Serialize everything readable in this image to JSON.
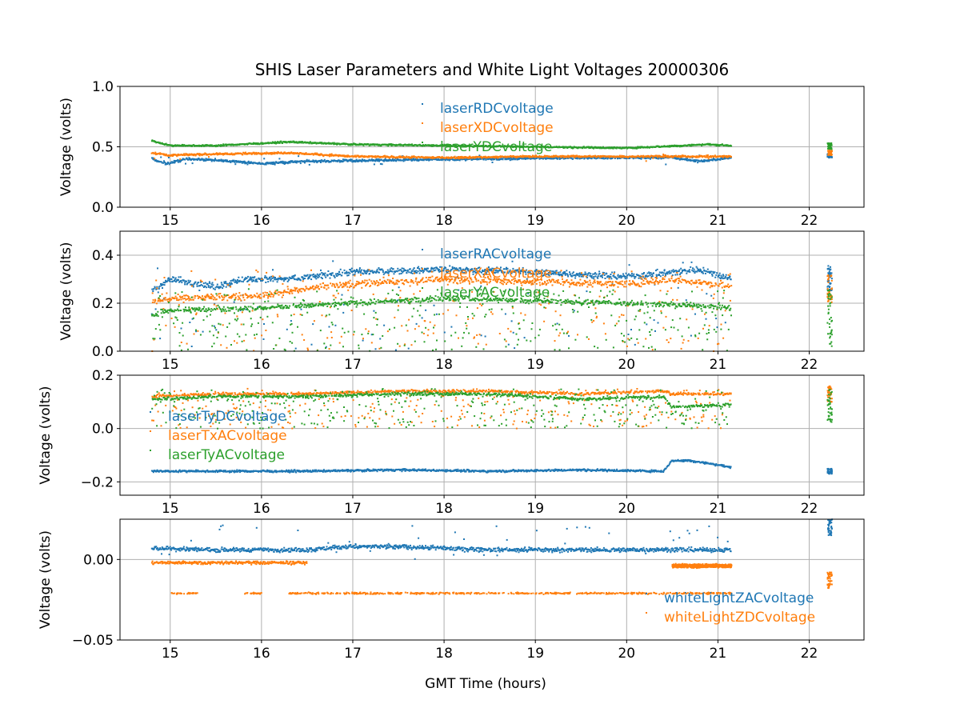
{
  "title": "SHIS Laser Parameters and White Light Voltages 20000306",
  "colors": {
    "c0": "#1f77b4",
    "c1": "#ff7f0e",
    "c2": "#2ca02c"
  },
  "chart_data": [
    {
      "type": "scatter",
      "xlim": [
        14.45,
        22.6
      ],
      "ylim": [
        0.0,
        1.0
      ],
      "xticks": [
        15,
        16,
        17,
        18,
        19,
        20,
        21,
        22
      ],
      "xtick_labels": [
        "15",
        "16",
        "17",
        "18",
        "19",
        "20",
        "21",
        "22"
      ],
      "yticks": [
        0.0,
        0.5,
        1.0
      ],
      "ytick_labels": [
        "0.0",
        "0.5",
        "1.0"
      ],
      "ylabel": "Voltage (volts)",
      "xlabel": "",
      "legend_placement": "top-center",
      "series": [
        {
          "name": "laserRDCvoltage",
          "color": "#1f77b4",
          "base": [
            [
              14.8,
              0.4
            ],
            [
              14.95,
              0.36
            ],
            [
              15.2,
              0.4
            ],
            [
              15.7,
              0.38
            ],
            [
              16.0,
              0.36
            ],
            [
              16.5,
              0.38
            ],
            [
              17.5,
              0.39
            ],
            [
              18.5,
              0.4
            ],
            [
              19.5,
              0.41
            ],
            [
              20.5,
              0.41
            ],
            [
              20.8,
              0.38
            ],
            [
              21.15,
              0.41
            ]
          ],
          "noise": 0.015,
          "outlier_rate": 0.02,
          "outlier_range": [
            0.35,
            0.45
          ],
          "late": [
            22.2,
            22.25,
            0.41,
            0.44
          ]
        },
        {
          "name": "laserXDCvoltage",
          "color": "#ff7f0e",
          "base": [
            [
              14.8,
              0.45
            ],
            [
              15.0,
              0.43
            ],
            [
              15.5,
              0.44
            ],
            [
              16.3,
              0.45
            ],
            [
              17.0,
              0.42
            ],
            [
              18.0,
              0.41
            ],
            [
              19.0,
              0.42
            ],
            [
              20.0,
              0.42
            ],
            [
              21.15,
              0.42
            ]
          ],
          "noise": 0.012,
          "outlier_rate": 0.01,
          "outlier_range": [
            0.38,
            0.45
          ],
          "late": [
            22.2,
            22.25,
            0.43,
            0.47
          ]
        },
        {
          "name": "laserYDCvoltage",
          "color": "#2ca02c",
          "base": [
            [
              14.8,
              0.55
            ],
            [
              15.0,
              0.51
            ],
            [
              15.5,
              0.51
            ],
            [
              16.3,
              0.54
            ],
            [
              17.0,
              0.52
            ],
            [
              18.0,
              0.51
            ],
            [
              19.0,
              0.5
            ],
            [
              20.0,
              0.49
            ],
            [
              20.9,
              0.52
            ],
            [
              21.15,
              0.51
            ]
          ],
          "noise": 0.01,
          "outlier_rate": 0.0,
          "outlier_range": [
            0.48,
            0.54
          ],
          "late": [
            22.2,
            22.25,
            0.48,
            0.53
          ]
        }
      ]
    },
    {
      "type": "scatter",
      "xlim": [
        14.45,
        22.6
      ],
      "ylim": [
        0.0,
        0.5
      ],
      "xticks": [
        15,
        16,
        17,
        18,
        19,
        20,
        21,
        22
      ],
      "xtick_labels": [
        "15",
        "16",
        "17",
        "18",
        "19",
        "20",
        "21",
        "22"
      ],
      "yticks": [
        0.0,
        0.2,
        0.4
      ],
      "ytick_labels": [
        "0.0",
        "0.2",
        "0.4"
      ],
      "ylabel": "Voltage (volts)",
      "xlabel": "",
      "legend_placement": "top-center",
      "series": [
        {
          "name": "laserRACvoltage",
          "color": "#1f77b4",
          "base": [
            [
              14.8,
              0.25
            ],
            [
              15.0,
              0.3
            ],
            [
              15.5,
              0.27
            ],
            [
              15.8,
              0.3
            ],
            [
              16.3,
              0.3
            ],
            [
              17.0,
              0.33
            ],
            [
              18.0,
              0.34
            ],
            [
              19.0,
              0.33
            ],
            [
              20.0,
              0.31
            ],
            [
              20.8,
              0.34
            ],
            [
              21.15,
              0.3
            ]
          ],
          "noise": 0.02,
          "outlier_rate": 0.12,
          "outlier_range": [
            0.0,
            0.38
          ],
          "late": [
            22.2,
            22.25,
            0.25,
            0.36
          ]
        },
        {
          "name": "laserXACvoltage",
          "color": "#ff7f0e",
          "base": [
            [
              14.8,
              0.2
            ],
            [
              15.0,
              0.22
            ],
            [
              16.0,
              0.23
            ],
            [
              16.5,
              0.26
            ],
            [
              17.0,
              0.28
            ],
            [
              18.0,
              0.3
            ],
            [
              19.0,
              0.29
            ],
            [
              20.0,
              0.28
            ],
            [
              20.5,
              0.3
            ],
            [
              21.15,
              0.27
            ]
          ],
          "noise": 0.02,
          "outlier_rate": 0.25,
          "outlier_range": [
            0.0,
            0.34
          ],
          "late": [
            22.2,
            22.25,
            0.2,
            0.32
          ]
        },
        {
          "name": "laserYACvoltage",
          "color": "#2ca02c",
          "base": [
            [
              14.8,
              0.15
            ],
            [
              15.0,
              0.17
            ],
            [
              16.0,
              0.18
            ],
            [
              16.5,
              0.19
            ],
            [
              17.0,
              0.2
            ],
            [
              18.0,
              0.22
            ],
            [
              19.0,
              0.21
            ],
            [
              20.0,
              0.2
            ],
            [
              20.8,
              0.19
            ],
            [
              21.15,
              0.18
            ]
          ],
          "noise": 0.015,
          "outlier_rate": 0.3,
          "outlier_range": [
            0.0,
            0.26
          ],
          "late": [
            22.2,
            22.25,
            0.02,
            0.26
          ]
        }
      ]
    },
    {
      "type": "scatter",
      "xlim": [
        14.45,
        22.6
      ],
      "ylim": [
        -0.25,
        0.2
      ],
      "xticks": [
        15,
        16,
        17,
        18,
        19,
        20,
        21,
        22
      ],
      "xtick_labels": [
        "15",
        "16",
        "17",
        "18",
        "19",
        "20",
        "21",
        "22"
      ],
      "yticks": [
        -0.2,
        0.0,
        0.2
      ],
      "ytick_labels": [
        "−0.2",
        "0.0",
        "0.2"
      ],
      "ylabel": "Voltage (volts)",
      "xlabel": "",
      "legend_placement": "center-left",
      "series": [
        {
          "name": "laserTyDCvoltage",
          "color": "#1f77b4",
          "base": [
            [
              14.8,
              -0.16
            ],
            [
              15.5,
              -0.16
            ],
            [
              16.5,
              -0.16
            ],
            [
              17.5,
              -0.155
            ],
            [
              18.5,
              -0.16
            ],
            [
              19.5,
              -0.155
            ],
            [
              20.4,
              -0.16
            ],
            [
              20.5,
              -0.12
            ],
            [
              20.7,
              -0.12
            ],
            [
              21.15,
              -0.145
            ]
          ],
          "noise": 0.006,
          "outlier_rate": 0.0,
          "outlier_range": [
            -0.17,
            -0.14
          ],
          "late": [
            22.2,
            22.25,
            -0.17,
            -0.15
          ]
        },
        {
          "name": "laserTxACvoltage",
          "color": "#ff7f0e",
          "base": [
            [
              14.8,
              0.12
            ],
            [
              15.5,
              0.13
            ],
            [
              16.5,
              0.13
            ],
            [
              17.5,
              0.14
            ],
            [
              18.5,
              0.14
            ],
            [
              19.5,
              0.13
            ],
            [
              20.4,
              0.14
            ],
            [
              20.5,
              0.13
            ],
            [
              21.15,
              0.13
            ]
          ],
          "noise": 0.008,
          "outlier_rate": 0.25,
          "outlier_range": [
            0.0,
            0.15
          ],
          "late": [
            22.2,
            22.25,
            0.1,
            0.16
          ]
        },
        {
          "name": "laserTyACvoltage",
          "color": "#2ca02c",
          "base": [
            [
              14.8,
              0.11
            ],
            [
              15.5,
              0.12
            ],
            [
              16.5,
              0.12
            ],
            [
              17.5,
              0.13
            ],
            [
              18.5,
              0.13
            ],
            [
              19.5,
              0.11
            ],
            [
              20.4,
              0.12
            ],
            [
              20.5,
              0.08
            ],
            [
              21.15,
              0.09
            ]
          ],
          "noise": 0.008,
          "outlier_rate": 0.35,
          "outlier_range": [
            0.0,
            0.15
          ],
          "late": [
            22.2,
            22.25,
            0.02,
            0.15
          ]
        }
      ]
    },
    {
      "type": "scatter",
      "xlim": [
        14.45,
        22.6
      ],
      "ylim": [
        -0.05,
        0.025
      ],
      "xticks": [
        15,
        16,
        17,
        18,
        19,
        20,
        21,
        22
      ],
      "xtick_labels": [
        "15",
        "16",
        "17",
        "18",
        "19",
        "20",
        "21",
        "22"
      ],
      "yticks": [
        -0.05,
        0.0
      ],
      "ytick_labels": [
        "−0.05",
        "0.00"
      ],
      "ylabel": "Voltage (volts)",
      "xlabel": "GMT Time (hours)",
      "legend_placement": "lower-right",
      "series": [
        {
          "name": "whiteLightZACvoltage",
          "color": "#1f77b4",
          "base": [
            [
              14.8,
              0.007
            ],
            [
              15.5,
              0.006
            ],
            [
              16.5,
              0.006
            ],
            [
              17.0,
              0.008
            ],
            [
              17.5,
              0.008
            ],
            [
              18.5,
              0.006
            ],
            [
              19.5,
              0.006
            ],
            [
              20.5,
              0.006
            ],
            [
              21.15,
              0.006
            ]
          ],
          "noise": 0.002,
          "outlier_rate": 0.05,
          "outlier_range": [
            0.0,
            0.022
          ],
          "late": [
            22.2,
            22.25,
            0.015,
            0.025
          ]
        },
        {
          "name": "whiteLightZDCvoltage",
          "color": "#ff7f0e",
          "base": [
            [
              14.8,
              -0.002
            ],
            [
              16.5,
              -0.002
            ]
          ],
          "noise": 0.0015,
          "outlier_rate": 0.0,
          "outlier_range": [
            -0.005,
            0.0
          ],
          "late": [
            22.2,
            22.25,
            -0.018,
            -0.008
          ],
          "extra_bands": [
            {
              "x0": 15.0,
              "x1": 21.15,
              "y": -0.021,
              "noise": 0.0008,
              "gaps": [
                [
                  15.3,
                  15.8
                ],
                [
                  16.0,
                  16.3
                ]
              ]
            },
            {
              "x0": 20.5,
              "x1": 21.15,
              "y": -0.004,
              "noise": 0.0015
            }
          ]
        }
      ]
    }
  ]
}
